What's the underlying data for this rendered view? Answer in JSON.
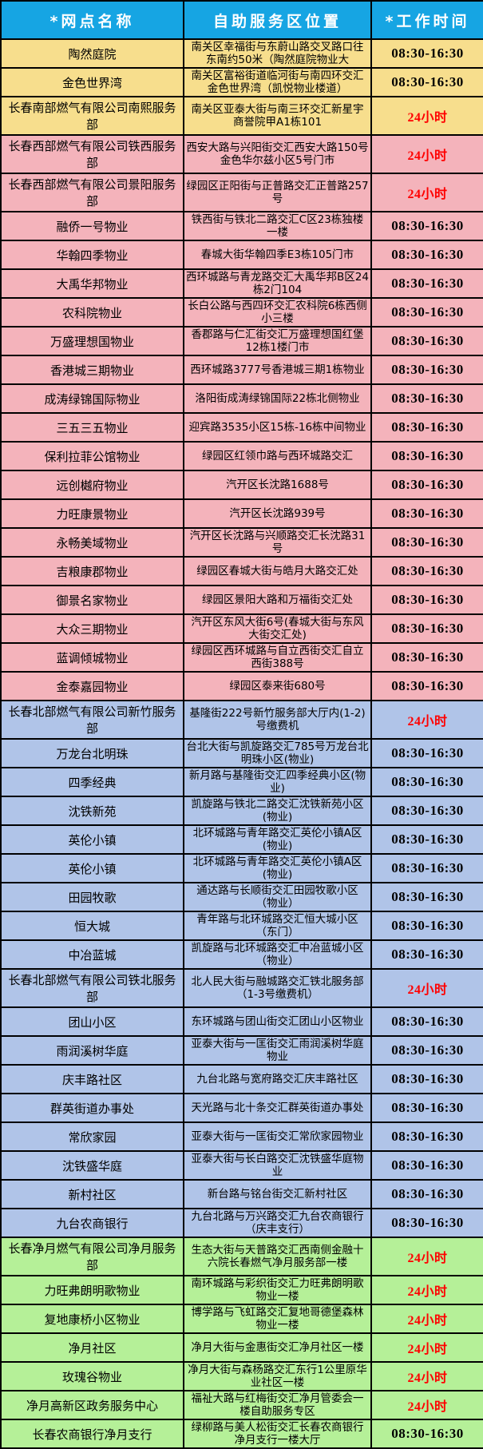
{
  "header": {
    "columns": [
      "*网点名称",
      "自助服务区位置",
      "*工作时间"
    ]
  },
  "colors": {
    "header_bg": "#16A5E3",
    "header_text": "#FFFFFF",
    "section_yellow": "#F7DE8D",
    "section_pink": "#F4B3BB",
    "section_blue": "#B0C4E8",
    "section_green": "#B5F098",
    "time_24h_red": "#FF0000",
    "time_black": "#000000",
    "grid_border": "#000000"
  },
  "times": {
    "day": "08:30-16:30",
    "h24": "24小时"
  },
  "rows": [
    {
      "name": "陶然庭院",
      "location": "南关区幸福街与东蔚山路交叉路口往东南约50米（陶然庭院物业大",
      "time": "08:30-16:30",
      "section": "yellow",
      "red": false
    },
    {
      "name": "金色世界湾",
      "location": "南关区富裕街道临河街与南四环交汇金色世界湾（凯悦物业楼道）",
      "time": "08:30-16:30",
      "section": "yellow",
      "red": false
    },
    {
      "name": "长春南部燃气有限公司南熙服务部",
      "location": "南关区亚泰大街与南三环交汇新星宇商誉院甲A1栋101",
      "time": "24小时",
      "section": "yellow",
      "red": true
    },
    {
      "name": "长春西部燃气有限公司铁西服务部",
      "location": "西安大路与兴阳街交汇西安大路150号金色华尔兹小区5号门市",
      "time": "24小时",
      "section": "pink",
      "red": true
    },
    {
      "name": "长春西部燃气有限公司景阳服务部",
      "location": "绿园区正阳街与正普路交汇正普路257号",
      "time": "24小时",
      "section": "pink",
      "red": true
    },
    {
      "name": "融侨一号物业",
      "location": "铁西街与铁北二路交汇C区23栋独楼一楼",
      "time": "08:30-16:30",
      "section": "pink",
      "red": false
    },
    {
      "name": "华翰四季物业",
      "location": "春城大街华翰四季E3栋105门市",
      "time": "08:30-16:30",
      "section": "pink",
      "red": false
    },
    {
      "name": "大禹华邦物业",
      "location": "西环城路与青龙路交汇大禹华邦B区24栋2门104",
      "time": "08:30-16:30",
      "section": "pink",
      "red": false
    },
    {
      "name": "农科院物业",
      "location": "长白公路与西四环交汇农科院6栋西侧小三楼",
      "time": "08:30-16:30",
      "section": "pink",
      "red": false
    },
    {
      "name": "万盛理想国物业",
      "location": "香郡路与仁汇街交汇万盛理想国红堡12栋1楼门市",
      "time": "08:30-16:30",
      "section": "pink",
      "red": false
    },
    {
      "name": "香港城三期物业",
      "location": "西环城路3777号香港城三期1栋物业",
      "time": "08:30-16:30",
      "section": "pink",
      "red": false
    },
    {
      "name": "成涛绿锦国际物业",
      "location": "洛阳街成涛绿锦国际22栋北侧物业",
      "time": "08:30-16:30",
      "section": "pink",
      "red": false
    },
    {
      "name": "三五三五物业",
      "location": "迎宾路3535小区15栋-16栋中间物业",
      "time": "08:30-16:30",
      "section": "pink",
      "red": false
    },
    {
      "name": "保利拉菲公馆物业",
      "location": "绿园区红领巾路与西环城路交汇",
      "time": "08:30-16:30",
      "section": "pink",
      "red": false
    },
    {
      "name": "远创樾府物业",
      "location": "汽开区长沈路1688号",
      "time": "08:30-16:30",
      "section": "pink",
      "red": false
    },
    {
      "name": "力旺康景物业",
      "location": "汽开区长沈路939号",
      "time": "08:30-16:30",
      "section": "pink",
      "red": false
    },
    {
      "name": "永畅美域物业",
      "location": "汽开区长沈路与兴顺路交汇长沈路31号",
      "time": "08:30-16:30",
      "section": "pink",
      "red": false
    },
    {
      "name": "吉粮康郡物业",
      "location": "绿园区春城大街与皓月大路交汇处",
      "time": "08:30-16:30",
      "section": "pink",
      "red": false
    },
    {
      "name": "御景名家物业",
      "location": "绿园区景阳大路和万福街交汇处",
      "time": "08:30-16:30",
      "section": "pink",
      "red": false
    },
    {
      "name": "大众三期物业",
      "location": "汽开区东风大街6号(春城大街与东风大街交汇处)",
      "time": "08:30-16:30",
      "section": "pink",
      "red": false
    },
    {
      "name": "蓝调倾城物业",
      "location": "绿园区西环城路与自立西街交汇自立西街388号",
      "time": "08:30-16:30",
      "section": "pink",
      "red": false
    },
    {
      "name": "金泰嘉园物业",
      "location": "绿园区泰来街680号",
      "time": "08:30-16:30",
      "section": "pink",
      "red": false
    },
    {
      "name": "长春北部燃气有限公司新竹服务部",
      "location": "基隆街222号新竹服务部大厅内(1-2)号缴费机",
      "time": "24小时",
      "section": "blue",
      "red": true
    },
    {
      "name": "万龙台北明珠",
      "location": "台北大街与凯旋路交汇785号万龙台北明珠小区(物业)",
      "time": "08:30-16:30",
      "section": "blue",
      "red": false
    },
    {
      "name": "四季经典",
      "location": "新月路与基隆街交汇四季经典小区(物业)",
      "time": "08:30-16:30",
      "section": "blue",
      "red": false
    },
    {
      "name": "沈铁新苑",
      "location": "凯旋路与铁北二路交汇沈铁新苑小区(物业)",
      "time": "08:30-16:30",
      "section": "blue",
      "red": false
    },
    {
      "name": "英伦小镇",
      "location": "北环城路与青年路交汇英伦小镇A区(物业)",
      "time": "08:30-16:30",
      "section": "blue",
      "red": false
    },
    {
      "name": "英伦小镇",
      "location": "北环城路与青年路交汇英伦小镇A区(物业)",
      "time": "08:30-16:30",
      "section": "blue",
      "red": false
    },
    {
      "name": "田园牧歌",
      "location": "通达路与长顺街交汇田园牧歌小区（物业）",
      "time": "08:30-16:30",
      "section": "blue",
      "red": false
    },
    {
      "name": "恒大城",
      "location": "青年路与北环城路交汇恒大城小区（东门）",
      "time": "08:30-16:30",
      "section": "blue",
      "red": false
    },
    {
      "name": "中冶蓝城",
      "location": "凯旋路与北环城路交汇中冶蓝城小区（物业）",
      "time": "08:30-16:30",
      "section": "blue",
      "red": false
    },
    {
      "name": "长春北部燃气有限公司铁北服务部",
      "location": "北人民大街与融城路交汇铁北服务部（1-3号缴费机）",
      "time": "24小时",
      "section": "blue",
      "red": true
    },
    {
      "name": "团山小区",
      "location": "东环城路与团山街交汇团山小区物业",
      "time": "08:30-16:30",
      "section": "blue",
      "red": false
    },
    {
      "name": "雨润溪树华庭",
      "location": "亚泰大街与一匡街交汇雨润溪树华庭物业",
      "time": "08:30-16:30",
      "section": "blue",
      "red": false
    },
    {
      "name": "庆丰路社区",
      "location": "九台北路与宽府路交汇庆丰路社区",
      "time": "08:30-16:30",
      "section": "blue",
      "red": false
    },
    {
      "name": "群英街道办事处",
      "location": "天光路与北十条交汇群英街道办事处",
      "time": "08:30-16:30",
      "section": "blue",
      "red": false
    },
    {
      "name": "常欣家园",
      "location": "亚泰大街与一匡街交汇常欣家园物业",
      "time": "08:30-16:30",
      "section": "blue",
      "red": false
    },
    {
      "name": "沈铁盛华庭",
      "location": "亚泰大街与长白路交汇沈铁盛华庭物业",
      "time": "08:30-16:30",
      "section": "blue",
      "red": false
    },
    {
      "name": "新村社区",
      "location": "新台路与铭台街交汇新村社区",
      "time": "08:30-16:30",
      "section": "blue",
      "red": false
    },
    {
      "name": "九台农商银行",
      "location": "九台北路与万兴路交汇九台农商银行（庆丰支行）",
      "time": "08:30-16:30",
      "section": "blue",
      "red": false
    },
    {
      "name": "长春净月燃气有限公司净月服务部",
      "location": "生态大街与天普路交汇西南侧金融十六院长春燃气净月服务部一楼",
      "time": "24小时",
      "section": "green",
      "red": true
    },
    {
      "name": "力旺弗朗明歌物业",
      "location": "南环城路与彩织街交汇力旺弗朗明歌物业一楼",
      "time": "24小时",
      "section": "green",
      "red": true
    },
    {
      "name": "复地康桥小区物业",
      "location": "博学路与飞虹路交汇复地哥德堡森林物业一楼",
      "time": "24小时",
      "section": "green",
      "red": true
    },
    {
      "name": "净月社区",
      "location": "净月大街与金惠街交汇净月社区一楼",
      "time": "24小时",
      "section": "green",
      "red": true
    },
    {
      "name": "玫瑰谷物业",
      "location": "净月大街与森杨路交汇东行1公里原华业社区一楼",
      "time": "24小时",
      "section": "green",
      "red": true
    },
    {
      "name": "净月高新区政务服务中心",
      "location": "福祉大路与红梅街交汇净月管委会一楼自助服务专区",
      "time": "24小时",
      "section": "green",
      "red": true
    },
    {
      "name": "长春农商银行净月支行",
      "location": "绿柳路与美人松街交汇长春农商银行净月支行一楼大厅",
      "time": "08:30-16:30",
      "section": "green",
      "red": false
    }
  ]
}
